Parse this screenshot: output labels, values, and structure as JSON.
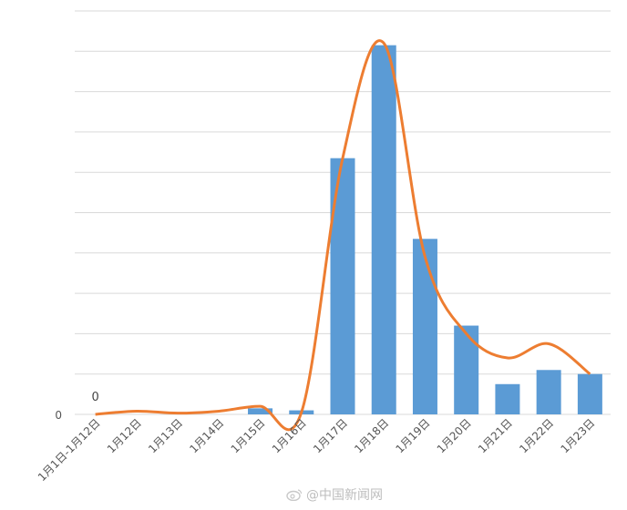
{
  "chart_data": {
    "type": "bar",
    "categories": [
      "1月1日-1月12日",
      "1月12日",
      "1月13日",
      "1月14日",
      "1月15日",
      "1月16日",
      "1月17日",
      "1月18日",
      "1月19日",
      "1月20日",
      "1月21日",
      "1月22日",
      "1月23日"
    ],
    "series": [
      {
        "values": [
          0,
          0,
          0,
          0,
          1.5,
          1.0,
          63.5,
          91.5,
          43.5,
          22.0,
          7.5,
          11.0,
          10.0
        ]
      },
      {
        "values": [
          0,
          0.8,
          0.3,
          0.8,
          2.0,
          0.5,
          63.5,
          92.0,
          39.0,
          20.0,
          14.0,
          17.5,
          10.0
        ]
      }
    ],
    "data_labels": [
      {
        "category": "1月1日-1月12日",
        "text": "0"
      }
    ],
    "y_zero_label": "0",
    "ylim": [
      0,
      100
    ],
    "gridlines": 10,
    "grid": true,
    "legend": "none",
    "colors": {
      "bar": "#5b9bd5",
      "line": "#ed7d31",
      "grid": "#d9d9d9"
    }
  },
  "watermark": {
    "text": "@中国新闻网",
    "icon": "weibo-icon"
  }
}
